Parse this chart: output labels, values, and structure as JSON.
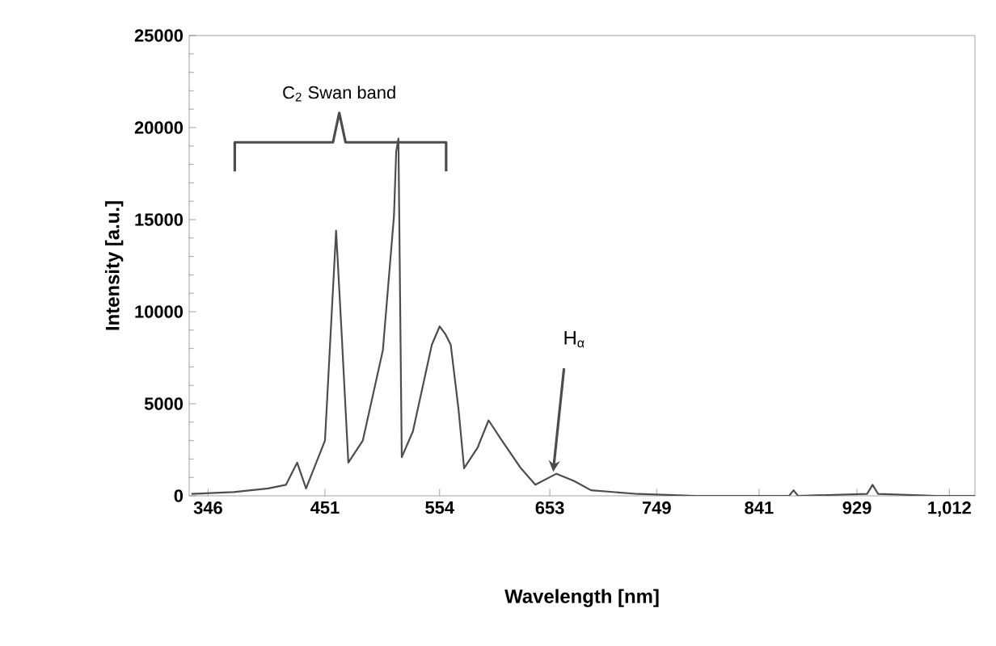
{
  "chart_data": {
    "type": "line",
    "xlabel": "Wavelength [nm]",
    "ylabel": "Intensity [a.u.]",
    "xlim": [
      329,
      1035
    ],
    "ylim": [
      0,
      25000
    ],
    "xticks": [
      346,
      451,
      554,
      653,
      749,
      841,
      929,
      {
        "value": 1012,
        "label": "1,012"
      }
    ],
    "yticks": [
      0,
      5000,
      10000,
      15000,
      20000,
      25000
    ],
    "grid": false,
    "marker": "none",
    "line_style": "solid",
    "series": [
      {
        "color": "#4d4d4d",
        "x": [
          331,
          369,
          400,
          416,
          421,
          426,
          434,
          451,
          461,
          466,
          472,
          485,
          503,
          513,
          515,
          517,
          520,
          530,
          547,
          554,
          559,
          564,
          571,
          576,
          588,
          598,
          610,
          627,
          640,
          659,
          675,
          690,
          732,
          784,
          868,
          872,
          876,
          938,
          943,
          948,
          1000,
          1035
        ],
        "values": [
          100,
          200,
          400,
          600,
          1200,
          1800,
          400,
          3000,
          14400,
          8800,
          1800,
          3000,
          7900,
          15200,
          18700,
          19400,
          2100,
          3500,
          8200,
          9200,
          8800,
          8200,
          4700,
          1500,
          2600,
          4100,
          3000,
          1500,
          600,
          1200,
          800,
          300,
          100,
          0,
          0,
          300,
          0,
          100,
          600,
          100,
          0,
          0
        ]
      }
    ],
    "annotations": [
      "C$_{2}$ Swan band",
      {
        "text": "H$_{α}$",
        "x": 656,
        "y": 1300
      }
    ]
  }
}
